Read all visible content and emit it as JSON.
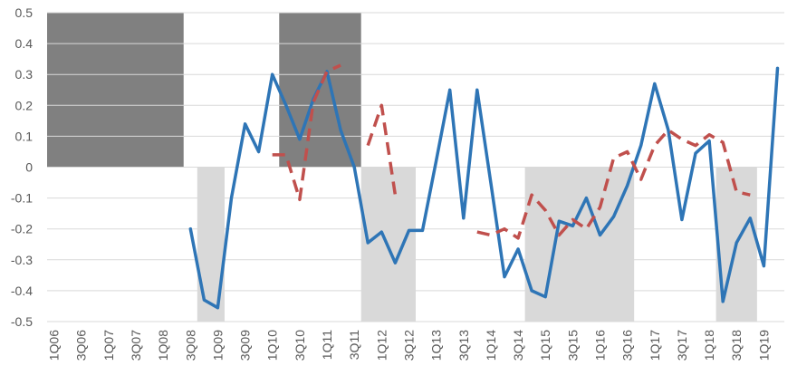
{
  "chart_data": {
    "type": "line",
    "title": "",
    "xlabel": "",
    "ylabel": "",
    "ylim": [
      -0.5,
      0.5
    ],
    "yticks": [
      0.5,
      0.4,
      0.3,
      0.2,
      0.1,
      0,
      -0.1,
      -0.2,
      -0.3,
      -0.4,
      -0.5
    ],
    "ytick_labels": [
      "0.5",
      "0.4",
      "0.3",
      "0.2",
      "0.1",
      "0",
      "-0.1",
      "-0.2",
      "-0.3",
      "-0.4",
      "-0.5"
    ],
    "grid": "horizontal",
    "categories": [
      "1Q06",
      "2Q06",
      "3Q06",
      "4Q06",
      "1Q07",
      "2Q07",
      "3Q07",
      "4Q07",
      "1Q08",
      "2Q08",
      "3Q08",
      "4Q08",
      "1Q09",
      "2Q09",
      "3Q09",
      "4Q09",
      "1Q10",
      "2Q10",
      "3Q10",
      "4Q10",
      "1Q11",
      "2Q11",
      "3Q11",
      "4Q11",
      "1Q12",
      "2Q12",
      "3Q12",
      "4Q12",
      "1Q13",
      "2Q13",
      "3Q13",
      "4Q13",
      "1Q14",
      "2Q14",
      "3Q14",
      "4Q14",
      "1Q15",
      "2Q15",
      "3Q15",
      "4Q15",
      "1Q16",
      "2Q16",
      "3Q16",
      "4Q16",
      "1Q17",
      "2Q17",
      "3Q17",
      "4Q17",
      "1Q18",
      "2Q18",
      "3Q18",
      "4Q18",
      "1Q19",
      "2Q19"
    ],
    "xtick_labels": [
      "1Q06",
      "3Q06",
      "1Q07",
      "3Q07",
      "1Q08",
      "3Q08",
      "1Q09",
      "3Q09",
      "1Q10",
      "3Q10",
      "1Q11",
      "3Q11",
      "1Q12",
      "3Q12",
      "1Q13",
      "3Q13",
      "1Q14",
      "3Q14",
      "1Q15",
      "3Q15",
      "1Q16",
      "3Q16",
      "1Q17",
      "3Q17",
      "1Q18",
      "3Q18",
      "1Q19"
    ],
    "shaded_regions": [
      {
        "from": "1Q06",
        "to": "2Q08",
        "y0": 0,
        "y1": 0.5,
        "color": "#808080"
      },
      {
        "from": "4Q08",
        "to": "1Q09",
        "y0": -0.5,
        "y1": 0,
        "color": "#d9d9d9"
      },
      {
        "from": "2Q10",
        "to": "3Q11",
        "y0": 0,
        "y1": 0.5,
        "color": "#808080"
      },
      {
        "from": "4Q11",
        "to": "3Q12",
        "y0": -0.5,
        "y1": 0,
        "color": "#d9d9d9"
      },
      {
        "from": "4Q14",
        "to": "3Q16",
        "y0": -0.5,
        "y1": 0,
        "color": "#d9d9d9"
      },
      {
        "from": "2Q18",
        "to": "4Q18",
        "y0": -0.5,
        "y1": 0,
        "color": "#d9d9d9"
      }
    ],
    "series": [
      {
        "style": "solid",
        "color": "#2e75b6",
        "points": [
          [
            "3Q08",
            -0.2
          ],
          [
            "4Q08",
            -0.43
          ],
          [
            "1Q09",
            -0.455
          ],
          [
            "2Q09",
            -0.1
          ],
          [
            "3Q09",
            0.14
          ],
          [
            "4Q09",
            0.05
          ],
          [
            "1Q10",
            0.3
          ],
          [
            "2Q10",
            0.2
          ],
          [
            "3Q10",
            0.09
          ],
          [
            "4Q10",
            0.22
          ],
          [
            "1Q11",
            0.31
          ],
          [
            "2Q11",
            0.12
          ],
          [
            "3Q11",
            0.0
          ],
          [
            "4Q11",
            -0.245
          ],
          [
            "1Q12",
            -0.21
          ],
          [
            "2Q12",
            -0.31
          ],
          [
            "3Q12",
            -0.205
          ],
          [
            "4Q12",
            -0.205
          ],
          [
            "1Q13",
            0.02
          ],
          [
            "2Q13",
            0.25
          ],
          [
            "3Q13",
            -0.165
          ],
          [
            "4Q13",
            0.25
          ],
          [
            "1Q14",
            -0.05
          ],
          [
            "2Q14",
            -0.355
          ],
          [
            "3Q14",
            -0.265
          ],
          [
            "4Q14",
            -0.4
          ],
          [
            "1Q15",
            -0.42
          ],
          [
            "2Q15",
            -0.175
          ],
          [
            "3Q15",
            -0.19
          ],
          [
            "4Q15",
            -0.1
          ],
          [
            "1Q16",
            -0.22
          ],
          [
            "2Q16",
            -0.16
          ],
          [
            "3Q16",
            -0.06
          ],
          [
            "4Q16",
            0.07
          ],
          [
            "1Q17",
            0.27
          ],
          [
            "2Q17",
            0.12
          ],
          [
            "3Q17",
            -0.17
          ],
          [
            "4Q17",
            0.045
          ],
          [
            "1Q18",
            0.085
          ],
          [
            "2Q18",
            -0.435
          ],
          [
            "3Q18",
            -0.245
          ],
          [
            "4Q18",
            -0.165
          ],
          [
            "1Q19",
            -0.32
          ],
          [
            "2Q19",
            0.32
          ]
        ]
      },
      {
        "style": "dashed",
        "color": "#c0504d",
        "segments": [
          [
            [
              "1Q10",
              0.04
            ],
            [
              "2Q10",
              0.04
            ],
            [
              "3Q10",
              -0.105
            ],
            [
              "4Q10",
              0.21
            ],
            [
              "1Q11",
              0.31
            ],
            [
              "2Q11",
              0.33
            ]
          ],
          [
            [
              "4Q11",
              0.07
            ],
            [
              "1Q12",
              0.2
            ],
            [
              "2Q12",
              -0.09
            ]
          ],
          [
            [
              "4Q13",
              -0.21
            ],
            [
              "1Q14",
              -0.22
            ],
            [
              "2Q14",
              -0.2
            ],
            [
              "3Q14",
              -0.23
            ],
            [
              "4Q14",
              -0.09
            ],
            [
              "1Q15",
              -0.14
            ],
            [
              "2Q15",
              -0.22
            ],
            [
              "3Q15",
              -0.17
            ],
            [
              "4Q15",
              -0.2
            ],
            [
              "1Q16",
              -0.13
            ],
            [
              "2Q16",
              0.03
            ],
            [
              "3Q16",
              0.05
            ],
            [
              "4Q16",
              -0.04
            ],
            [
              "1Q17",
              0.07
            ],
            [
              "2Q17",
              0.12
            ],
            [
              "3Q17",
              0.09
            ],
            [
              "4Q17",
              0.07
            ],
            [
              "1Q18",
              0.105
            ],
            [
              "2Q18",
              0.08
            ],
            [
              "3Q18",
              -0.08
            ],
            [
              "4Q18",
              -0.09
            ]
          ]
        ]
      }
    ]
  }
}
